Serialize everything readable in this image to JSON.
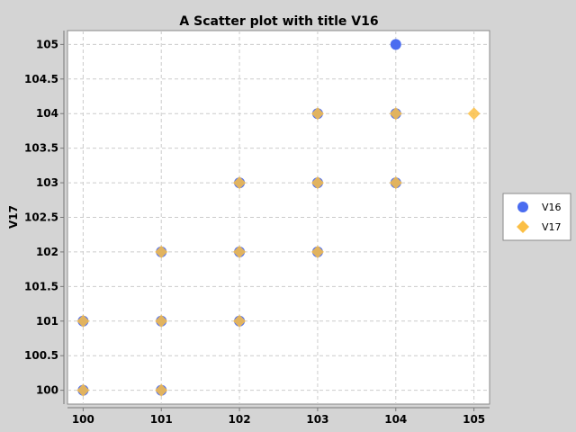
{
  "chart_data": {
    "type": "scatter",
    "title": "A Scatter plot with title V16",
    "xlabel": "",
    "ylabel": "V17",
    "xlim": [
      99.8,
      105.2
    ],
    "ylim": [
      99.8,
      105.2
    ],
    "x_ticks": [
      "100",
      "101",
      "102",
      "103",
      "104",
      "105"
    ],
    "y_ticks": [
      "100",
      "100.5",
      "101",
      "101.5",
      "102",
      "102.5",
      "103",
      "103.5",
      "104",
      "104.5",
      "105"
    ],
    "grid": true,
    "legend_position": "right",
    "series": [
      {
        "name": "V16",
        "marker": "circle",
        "color": "#4a6cf0",
        "points": [
          [
            100,
            100
          ],
          [
            100,
            101
          ],
          [
            101,
            100
          ],
          [
            101,
            101
          ],
          [
            101,
            102
          ],
          [
            102,
            101
          ],
          [
            102,
            102
          ],
          [
            102,
            103
          ],
          [
            103,
            102
          ],
          [
            103,
            103
          ],
          [
            103,
            104
          ],
          [
            104,
            103
          ],
          [
            104,
            104
          ],
          [
            104,
            105
          ]
        ]
      },
      {
        "name": "V17",
        "marker": "diamond",
        "color": "#fbbf45",
        "points": [
          [
            100,
            100
          ],
          [
            100,
            101
          ],
          [
            101,
            100
          ],
          [
            101,
            101
          ],
          [
            101,
            102
          ],
          [
            102,
            101
          ],
          [
            102,
            102
          ],
          [
            102,
            103
          ],
          [
            103,
            102
          ],
          [
            103,
            103
          ],
          [
            103,
            104
          ],
          [
            104,
            103
          ],
          [
            104,
            104
          ],
          [
            105,
            104
          ]
        ]
      }
    ]
  }
}
